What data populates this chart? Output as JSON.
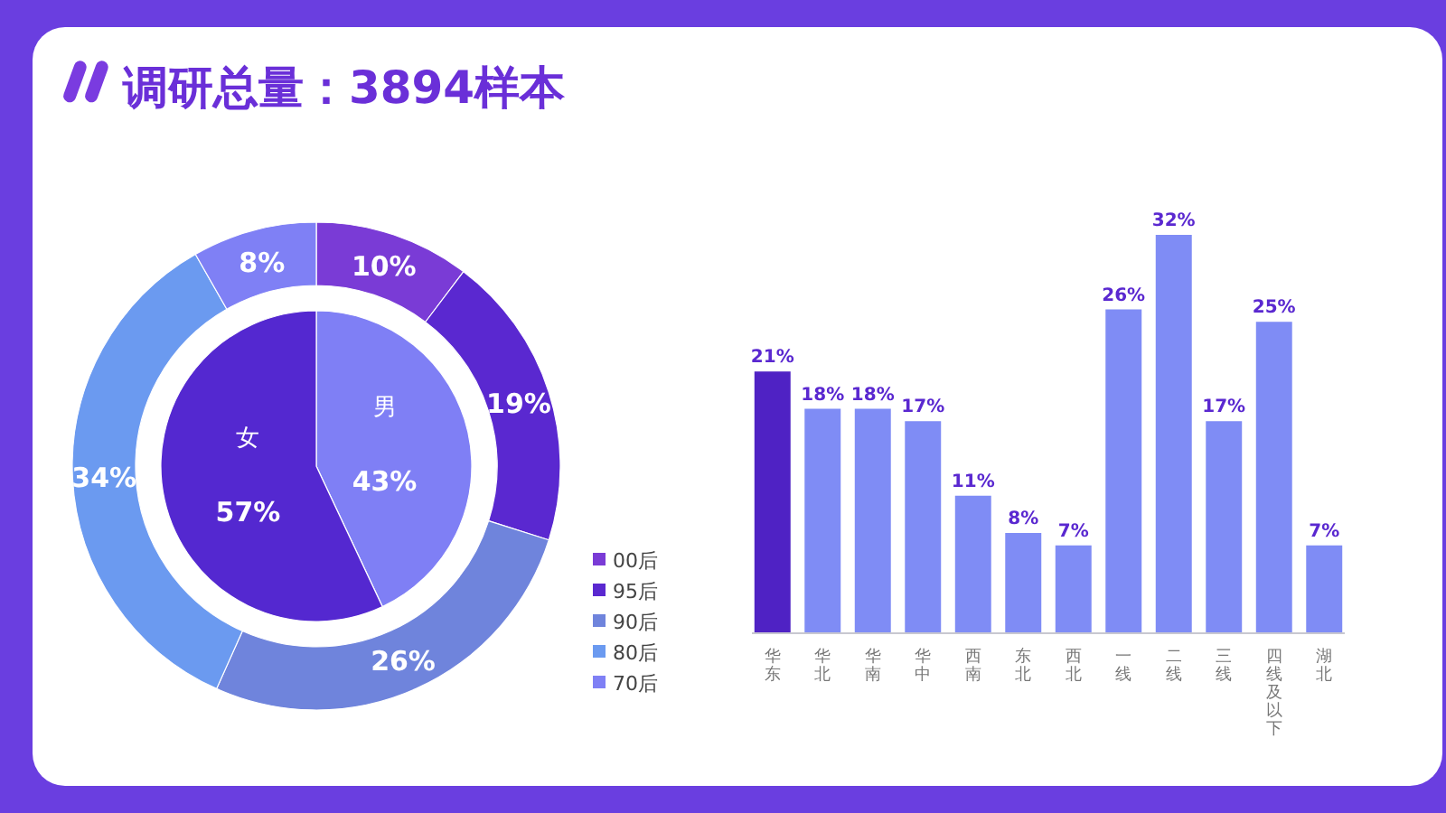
{
  "chart_data": [
    {
      "type": "pie",
      "title": "调研总量：3894样本",
      "categories": [
        "男",
        "女"
      ],
      "values": [
        43,
        57
      ],
      "colors": [
        "#7f7ff5",
        "#5428d0"
      ],
      "value_labels": [
        "43%",
        "57%"
      ]
    },
    {
      "type": "donut",
      "categories": [
        "00后",
        "95后",
        "90后",
        "80后",
        "70后"
      ],
      "values": [
        10,
        19,
        26,
        34,
        8
      ],
      "colors": [
        "#7a3bd6",
        "#5a28d0",
        "#6f84dc",
        "#6b9af0",
        "#7f80f5"
      ],
      "value_labels": [
        "10%",
        "19%",
        "26%",
        "34%",
        "8%"
      ],
      "legend": "right"
    },
    {
      "type": "bar",
      "categories": [
        "华东",
        "华北",
        "华南",
        "华中",
        "西南",
        "东北",
        "西北",
        "一线",
        "二线",
        "三线",
        "四线及以下",
        "湖北"
      ],
      "values": [
        21,
        18,
        18,
        17,
        11,
        8,
        7,
        26,
        32,
        17,
        25,
        7
      ],
      "colors": [
        "#4f22c4",
        "#7f8cf5",
        "#7f8cf5",
        "#7f8cf5",
        "#7f8cf5",
        "#7f8cf5",
        "#7f8cf5",
        "#7f8cf5",
        "#7f8cf5",
        "#7f8cf5",
        "#7f8cf5",
        "#7f8cf5"
      ],
      "value_labels": [
        "21%",
        "18%",
        "18%",
        "17%",
        "11%",
        "8%",
        "7%",
        "26%",
        "32%",
        "17%",
        "25%",
        "7%"
      ]
    }
  ]
}
